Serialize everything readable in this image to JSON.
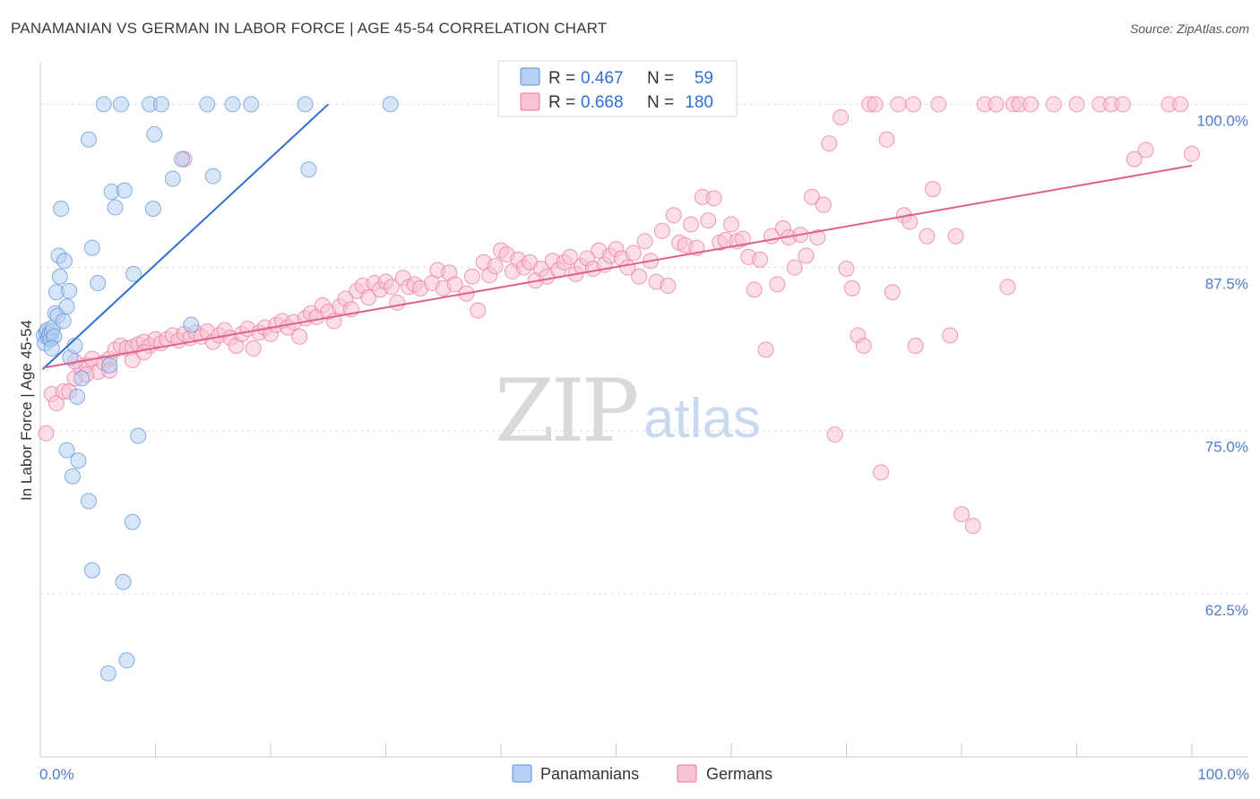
{
  "title": "PANAMANIAN VS GERMAN IN LABOR FORCE | AGE 45-54 CORRELATION CHART",
  "source": "Source: ZipAtlas.com",
  "watermark": {
    "zip": "ZIP",
    "atlas": "atlas"
  },
  "legend": {
    "r_label": "R =",
    "n_label": "N =",
    "entries": [
      {
        "name": "Panamanians",
        "r": "0.467",
        "n": "59",
        "color": "#5b8fd6",
        "fill": "#b7d0f3"
      },
      {
        "name": "Germans",
        "r": "0.668",
        "n": "180",
        "color": "#e8739b",
        "fill": "#f7c3d3"
      }
    ]
  },
  "chart_data": {
    "type": "scatter",
    "title": "PANAMANIAN VS GERMAN IN LABOR FORCE | AGE 45-54 CORRELATION CHART",
    "xlabel": "",
    "ylabel": "In Labor Force | Age 45-54",
    "xlim": [
      0,
      100
    ],
    "ylim": [
      50,
      102.5
    ],
    "x_tick_labels": [
      "0.0%",
      "100.0%"
    ],
    "y_ticks": [
      62.5,
      75.0,
      87.5,
      100.0
    ],
    "y_tick_labels": [
      "62.5%",
      "75.0%",
      "87.5%",
      "100.0%"
    ],
    "series": [
      {
        "name": "Panamanians",
        "color": "#5b8fd6",
        "trend": {
          "x": [
            0.2,
            25
          ],
          "y": [
            79.7,
            100.0
          ]
        },
        "points": [
          [
            0.3,
            82.3
          ],
          [
            0.4,
            81.7
          ],
          [
            0.5,
            82.5
          ],
          [
            0.6,
            82.7
          ],
          [
            0.7,
            82.1
          ],
          [
            0.8,
            82.4
          ],
          [
            0.9,
            82.0
          ],
          [
            1.0,
            82.6
          ],
          [
            1.1,
            82.9
          ],
          [
            1.2,
            82.2
          ],
          [
            1.3,
            84.0
          ],
          [
            1.4,
            85.6
          ],
          [
            1.5,
            83.8
          ],
          [
            1.6,
            88.4
          ],
          [
            1.7,
            86.8
          ],
          [
            1.8,
            92.0
          ],
          [
            2.0,
            83.4
          ],
          [
            2.1,
            88.0
          ],
          [
            2.3,
            84.5
          ],
          [
            2.5,
            85.7
          ],
          [
            1.0,
            81.3
          ],
          [
            2.6,
            80.6
          ],
          [
            3.0,
            81.5
          ],
          [
            3.2,
            77.6
          ],
          [
            3.6,
            79.0
          ],
          [
            4.2,
            97.3
          ],
          [
            4.5,
            89.0
          ],
          [
            5.0,
            86.3
          ],
          [
            5.5,
            100.0
          ],
          [
            6.2,
            93.3
          ],
          [
            6.5,
            92.1
          ],
          [
            7.0,
            100.0
          ],
          [
            7.3,
            93.4
          ],
          [
            8.1,
            87.0
          ],
          [
            8.5,
            74.6
          ],
          [
            9.5,
            100.0
          ],
          [
            9.8,
            92.0
          ],
          [
            9.9,
            97.7
          ],
          [
            10.5,
            100.0
          ],
          [
            11.5,
            94.3
          ],
          [
            12.3,
            95.8
          ],
          [
            13.1,
            83.1
          ],
          [
            14.5,
            100.0
          ],
          [
            15.0,
            94.5
          ],
          [
            16.7,
            100.0
          ],
          [
            18.3,
            100.0
          ],
          [
            23.3,
            95.0
          ],
          [
            23.0,
            100.0
          ],
          [
            30.4,
            100.0
          ],
          [
            6.0,
            80.0
          ],
          [
            2.3,
            73.5
          ],
          [
            3.3,
            72.7
          ],
          [
            2.8,
            71.5
          ],
          [
            4.2,
            69.6
          ],
          [
            8.0,
            68.0
          ],
          [
            4.5,
            64.3
          ],
          [
            7.2,
            63.4
          ],
          [
            7.5,
            57.4
          ],
          [
            5.9,
            56.4
          ]
        ]
      },
      {
        "name": "Germans",
        "color": "#e8739b",
        "trend": {
          "x": [
            0.2,
            100
          ],
          "y": [
            79.8,
            95.3
          ]
        },
        "points": [
          [
            0.5,
            74.8
          ],
          [
            1.0,
            77.8
          ],
          [
            1.4,
            77.1
          ],
          [
            2.0,
            78.0
          ],
          [
            2.5,
            78.0
          ],
          [
            3.0,
            79.0
          ],
          [
            3.5,
            79.8
          ],
          [
            4.0,
            80.0
          ],
          [
            4.5,
            80.5
          ],
          [
            5.0,
            79.5
          ],
          [
            5.5,
            80.2
          ],
          [
            6.0,
            80.5
          ],
          [
            6.5,
            81.2
          ],
          [
            7.0,
            81.5
          ],
          [
            7.5,
            81.3
          ],
          [
            8.0,
            81.4
          ],
          [
            8.5,
            81.6
          ],
          [
            9.0,
            81.8
          ],
          [
            9.5,
            81.5
          ],
          [
            10.0,
            82.0
          ],
          [
            10.5,
            81.7
          ],
          [
            11.0,
            82.0
          ],
          [
            11.5,
            82.3
          ],
          [
            12.0,
            81.9
          ],
          [
            12.5,
            82.4
          ],
          [
            13.0,
            82.1
          ],
          [
            13.5,
            82.5
          ],
          [
            14.0,
            82.2
          ],
          [
            14.5,
            82.6
          ],
          [
            15.0,
            81.8
          ],
          [
            15.5,
            82.3
          ],
          [
            16.0,
            82.7
          ],
          [
            16.5,
            82.1
          ],
          [
            17.0,
            81.5
          ],
          [
            17.5,
            82.4
          ],
          [
            18.0,
            82.8
          ],
          [
            18.5,
            81.3
          ],
          [
            19.0,
            82.5
          ],
          [
            19.5,
            82.9
          ],
          [
            20.0,
            82.4
          ],
          [
            20.5,
            83.1
          ],
          [
            21.0,
            83.4
          ],
          [
            21.5,
            82.9
          ],
          [
            22.0,
            83.3
          ],
          [
            22.5,
            82.2
          ],
          [
            23.0,
            83.6
          ],
          [
            23.5,
            84.0
          ],
          [
            24.0,
            83.7
          ],
          [
            24.5,
            84.6
          ],
          [
            25.0,
            84.1
          ],
          [
            25.5,
            83.4
          ],
          [
            26.0,
            84.5
          ],
          [
            26.5,
            85.1
          ],
          [
            27.0,
            84.3
          ],
          [
            27.5,
            85.7
          ],
          [
            28.0,
            86.1
          ],
          [
            28.5,
            85.2
          ],
          [
            29.0,
            86.3
          ],
          [
            29.5,
            85.8
          ],
          [
            30.0,
            86.4
          ],
          [
            30.5,
            86.0
          ],
          [
            31.0,
            84.8
          ],
          [
            31.5,
            86.7
          ],
          [
            32.0,
            86.0
          ],
          [
            32.5,
            86.2
          ],
          [
            33.0,
            85.9
          ],
          [
            34.0,
            86.3
          ],
          [
            34.5,
            87.3
          ],
          [
            35.0,
            85.9
          ],
          [
            35.5,
            87.1
          ],
          [
            36.0,
            86.2
          ],
          [
            37.0,
            85.5
          ],
          [
            37.5,
            86.8
          ],
          [
            38.0,
            84.2
          ],
          [
            38.5,
            87.9
          ],
          [
            39.0,
            86.9
          ],
          [
            39.5,
            87.6
          ],
          [
            40.0,
            88.8
          ],
          [
            40.5,
            88.5
          ],
          [
            41.0,
            87.2
          ],
          [
            41.5,
            88.1
          ],
          [
            42.0,
            87.5
          ],
          [
            42.5,
            87.9
          ],
          [
            43.0,
            86.5
          ],
          [
            43.5,
            87.4
          ],
          [
            44.0,
            86.8
          ],
          [
            44.5,
            88.0
          ],
          [
            45.0,
            87.3
          ],
          [
            45.5,
            87.9
          ],
          [
            46.0,
            88.3
          ],
          [
            46.5,
            87.0
          ],
          [
            47.0,
            87.6
          ],
          [
            47.5,
            88.2
          ],
          [
            48.0,
            87.4
          ],
          [
            48.5,
            88.8
          ],
          [
            49.0,
            87.7
          ],
          [
            49.5,
            88.4
          ],
          [
            50.0,
            88.9
          ],
          [
            50.5,
            88.2
          ],
          [
            51.0,
            87.5
          ],
          [
            51.5,
            88.6
          ],
          [
            52.0,
            86.8
          ],
          [
            52.5,
            89.5
          ],
          [
            53.0,
            88.0
          ],
          [
            53.5,
            86.4
          ],
          [
            54.0,
            90.3
          ],
          [
            54.5,
            86.1
          ],
          [
            55.0,
            91.5
          ],
          [
            55.5,
            89.4
          ],
          [
            56.0,
            89.2
          ],
          [
            56.5,
            90.8
          ],
          [
            57.0,
            89.0
          ],
          [
            57.5,
            92.9
          ],
          [
            58.0,
            91.1
          ],
          [
            58.5,
            92.8
          ],
          [
            59.0,
            89.4
          ],
          [
            59.5,
            89.6
          ],
          [
            60.0,
            90.8
          ],
          [
            60.5,
            89.5
          ],
          [
            61.0,
            89.7
          ],
          [
            61.5,
            88.3
          ],
          [
            62.0,
            85.8
          ],
          [
            62.5,
            88.1
          ],
          [
            63.0,
            81.2
          ],
          [
            63.5,
            89.9
          ],
          [
            64.0,
            86.2
          ],
          [
            64.5,
            90.5
          ],
          [
            65.0,
            89.8
          ],
          [
            65.5,
            87.5
          ],
          [
            66.0,
            90.0
          ],
          [
            66.5,
            88.4
          ],
          [
            67.0,
            92.9
          ],
          [
            67.5,
            89.8
          ],
          [
            68.0,
            92.3
          ],
          [
            68.5,
            97.0
          ],
          [
            69.0,
            74.7
          ],
          [
            69.5,
            99.0
          ],
          [
            70.0,
            87.4
          ],
          [
            70.5,
            85.9
          ],
          [
            71.0,
            82.3
          ],
          [
            71.5,
            81.5
          ],
          [
            72.0,
            100.0
          ],
          [
            72.5,
            100.0
          ],
          [
            73.0,
            71.8
          ],
          [
            73.5,
            97.3
          ],
          [
            74.0,
            85.6
          ],
          [
            74.5,
            100.0
          ],
          [
            75.0,
            91.5
          ],
          [
            75.5,
            91.0
          ],
          [
            75.8,
            100.0
          ],
          [
            76.0,
            81.5
          ],
          [
            77.0,
            89.9
          ],
          [
            77.5,
            93.5
          ],
          [
            78.0,
            100.0
          ],
          [
            79.0,
            82.3
          ],
          [
            79.5,
            89.9
          ],
          [
            80.0,
            68.6
          ],
          [
            81.0,
            67.7
          ],
          [
            82.0,
            100.0
          ],
          [
            83.0,
            100.0
          ],
          [
            84.0,
            86.0
          ],
          [
            84.5,
            100.0
          ],
          [
            85.0,
            100.0
          ],
          [
            86.0,
            100.0
          ],
          [
            88.0,
            100.0
          ],
          [
            90.0,
            100.0
          ],
          [
            92.0,
            100.0
          ],
          [
            93.0,
            100.0
          ],
          [
            94.0,
            100.0
          ],
          [
            95.0,
            95.8
          ],
          [
            96.0,
            96.5
          ],
          [
            98.0,
            100.0
          ],
          [
            99.0,
            100.0
          ],
          [
            100.0,
            96.2
          ],
          [
            12.5,
            95.8
          ],
          [
            8.0,
            80.4
          ],
          [
            6.0,
            79.6
          ],
          [
            4.0,
            79.3
          ],
          [
            3.0,
            80.3
          ],
          [
            9.0,
            81.0
          ]
        ]
      }
    ]
  }
}
